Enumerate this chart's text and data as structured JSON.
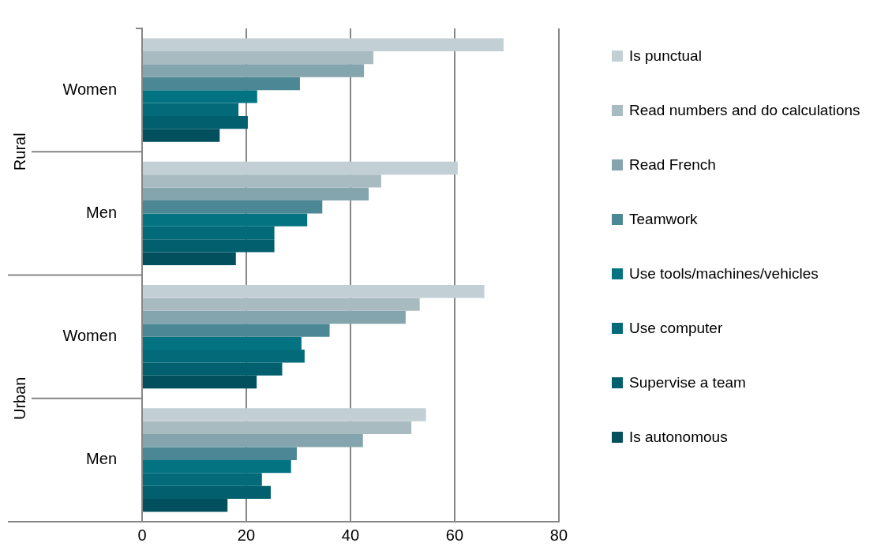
{
  "chart_data": {
    "type": "bar",
    "orientation": "horizontal",
    "categories": [
      "Women",
      "Men",
      "Women",
      "Men"
    ],
    "annotations": [
      "Rural",
      "Urban"
    ],
    "series": [
      {
        "name": "Is punctual",
        "color": "#c2cfd4",
        "values": [
          69.4,
          60.6,
          65.7,
          54.5
        ]
      },
      {
        "name": "Read numbers and do calculations",
        "color": "#a7bbc1",
        "values": [
          44.4,
          45.9,
          53.3,
          51.7
        ]
      },
      {
        "name": "Read French",
        "color": "#84a5ad",
        "values": [
          42.6,
          43.5,
          50.6,
          42.4
        ]
      },
      {
        "name": "Teamwork",
        "color": "#4b8794",
        "values": [
          30.3,
          34.6,
          36.0,
          29.7
        ]
      },
      {
        "name": "Use tools/machines/vehicles",
        "color": "#037382",
        "values": [
          22.1,
          31.7,
          30.6,
          28.6
        ]
      },
      {
        "name": "Use computer",
        "color": "#026a78",
        "values": [
          18.5,
          25.4,
          31.2,
          23.0
        ]
      },
      {
        "name": "Supervise a team",
        "color": "#025f6e",
        "values": [
          20.3,
          25.4,
          26.9,
          24.7
        ]
      },
      {
        "name": "Is autonomous",
        "color": "#024f5e",
        "values": [
          14.9,
          18.0,
          22.0,
          16.4
        ]
      }
    ],
    "xlim": [
      0,
      80
    ],
    "xticks": [
      0,
      20,
      40,
      60,
      80
    ],
    "grid": "x",
    "legend": "right"
  }
}
